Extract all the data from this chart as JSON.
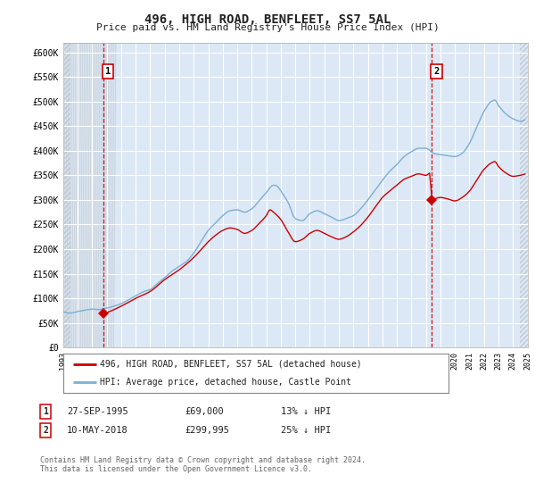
{
  "title": "496, HIGH ROAD, BENFLEET, SS7 5AL",
  "subtitle": "Price paid vs. HM Land Registry's House Price Index (HPI)",
  "ylim": [
    0,
    620000
  ],
  "yticks": [
    0,
    50000,
    100000,
    150000,
    200000,
    250000,
    300000,
    350000,
    400000,
    450000,
    500000,
    550000,
    600000
  ],
  "ytick_labels": [
    "£0",
    "£50K",
    "£100K",
    "£150K",
    "£200K",
    "£250K",
    "£300K",
    "£350K",
    "£400K",
    "£450K",
    "£500K",
    "£550K",
    "£600K"
  ],
  "background_color": "#ffffff",
  "plot_bg_color": "#dce8f5",
  "hpi_color": "#7bafd4",
  "price_color": "#cc0000",
  "grid_color": "#ffffff",
  "hatch_color": "#c0c8d0",
  "purchase1_date_idx": 34,
  "purchase1_price": 69000,
  "purchase2_date_idx": 304,
  "purchase2_price": 299995,
  "legend_label_price": "496, HIGH ROAD, BENFLEET, SS7 5AL (detached house)",
  "legend_label_hpi": "HPI: Average price, detached house, Castle Point",
  "note1_label": "1",
  "note1_date": "27-SEP-1995",
  "note1_price": "£69,000",
  "note1_info": "13% ↓ HPI",
  "note2_label": "2",
  "note2_date": "10-MAY-2018",
  "note2_price": "£299,995",
  "note2_info": "25% ↓ HPI",
  "footer": "Contains HM Land Registry data © Crown copyright and database right 2024.\nThis data is licensed under the Open Government Licence v3.0.",
  "xstart_year": 1993,
  "xend_year": 2025
}
